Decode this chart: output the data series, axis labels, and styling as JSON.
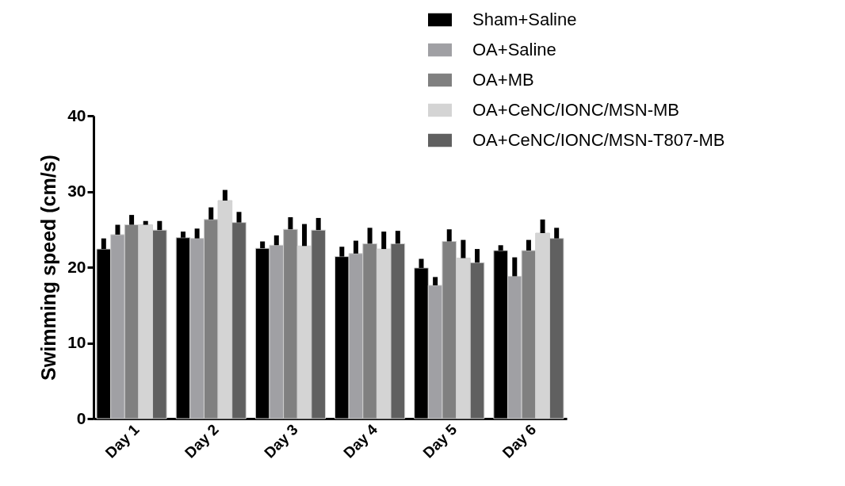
{
  "chart_data": {
    "type": "bar",
    "ylabel": "Swimming speed (cm/s)",
    "categories": [
      "Day 1",
      "Day 2",
      "Day 3",
      "Day 4",
      "Day 5",
      "Day 6"
    ],
    "series": [
      {
        "name": "Sham+Saline",
        "color": "#000000",
        "values": [
          22.4,
          23.9,
          22.5,
          21.4,
          19.9,
          22.2
        ],
        "errors": [
          [
            22.4,
            23.8
          ],
          [
            23.9,
            24.7
          ],
          [
            22.5,
            23.4
          ],
          [
            21.4,
            22.7
          ],
          [
            19.9,
            21.1
          ],
          [
            22.2,
            22.9
          ]
        ]
      },
      {
        "name": "OA+Saline",
        "color": "#a0a0a4",
        "values": [
          24.3,
          23.8,
          22.9,
          21.8,
          17.6,
          18.8
        ],
        "errors": [
          [
            24.3,
            25.6
          ],
          [
            23.8,
            25.1
          ],
          [
            22.9,
            24.2
          ],
          [
            21.8,
            23.5
          ],
          [
            17.6,
            18.7
          ],
          [
            18.8,
            21.3
          ]
        ]
      },
      {
        "name": "OA+MB",
        "color": "#808080",
        "values": [
          25.6,
          26.3,
          25.0,
          23.1,
          23.4,
          22.2
        ],
        "errors": [
          [
            25.6,
            26.9
          ],
          [
            26.3,
            27.9
          ],
          [
            25.0,
            26.6
          ],
          [
            23.1,
            25.2
          ],
          [
            23.4,
            25.0
          ],
          [
            22.2,
            23.6
          ]
        ]
      },
      {
        "name": "OA+CeNC/IONC/MSN-MB",
        "color": "#d4d4d4",
        "values": [
          25.6,
          28.8,
          22.8,
          22.4,
          21.2,
          24.5
        ],
        "errors": [
          [
            25.6,
            26.1
          ],
          [
            28.8,
            30.2
          ],
          [
            22.8,
            25.7
          ],
          [
            22.4,
            24.7
          ],
          [
            21.2,
            23.6
          ],
          [
            24.5,
            26.3
          ]
        ]
      },
      {
        "name": "OA+CeNC/IONC/MSN-T807-MB",
        "color": "#606060",
        "values": [
          24.9,
          25.9,
          24.9,
          23.1,
          20.6,
          23.8
        ],
        "errors": [
          [
            24.9,
            26.1
          ],
          [
            25.9,
            27.3
          ],
          [
            24.9,
            26.5
          ],
          [
            23.1,
            24.8
          ],
          [
            20.6,
            22.4
          ],
          [
            23.8,
            25.2
          ]
        ]
      }
    ],
    "ylim": [
      0,
      40
    ],
    "yticks": [
      0,
      10,
      20,
      30,
      40
    ],
    "grid": false,
    "legend": "top right"
  }
}
